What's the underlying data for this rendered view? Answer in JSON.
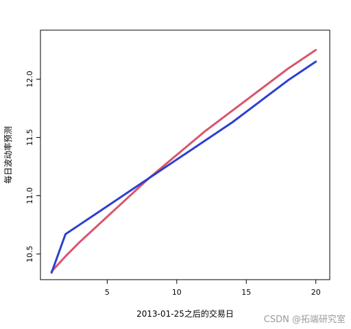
{
  "chart_data": {
    "type": "line",
    "xlabel": "2013-01-25之后的交易日",
    "ylabel": "每日波动率预测",
    "xlim": [
      0.2,
      21.0
    ],
    "ylim": [
      10.28,
      12.42
    ],
    "x_ticks": [
      5,
      10,
      15,
      20
    ],
    "y_ticks": [
      10.5,
      11.0,
      11.5,
      12.0
    ],
    "y_tick_labels": [
      "10.5",
      "11.0",
      "11.5",
      "12.0"
    ],
    "grid": false,
    "series": [
      {
        "color": "#d9546b",
        "x": [
          1,
          2,
          3,
          4,
          5,
          6,
          7,
          8,
          9,
          10,
          11,
          12,
          13,
          14,
          15,
          16,
          17,
          18,
          19,
          20
        ],
        "values": [
          10.35,
          10.48,
          10.6,
          10.71,
          10.82,
          10.93,
          11.04,
          11.15,
          11.25,
          11.35,
          11.45,
          11.55,
          11.64,
          11.73,
          11.82,
          11.91,
          12.0,
          12.09,
          12.17,
          12.25
        ]
      },
      {
        "color": "#2b3fd1",
        "x": [
          1,
          2,
          3,
          4,
          5,
          6,
          7,
          8,
          9,
          10,
          11,
          12,
          13,
          14,
          15,
          16,
          17,
          18,
          19,
          20
        ],
        "values": [
          10.34,
          10.67,
          10.75,
          10.83,
          10.91,
          10.99,
          11.07,
          11.15,
          11.23,
          11.31,
          11.39,
          11.47,
          11.55,
          11.63,
          11.72,
          11.81,
          11.9,
          11.99,
          12.07,
          12.15
        ]
      }
    ]
  },
  "watermark": "CSDN @拓端研究室"
}
